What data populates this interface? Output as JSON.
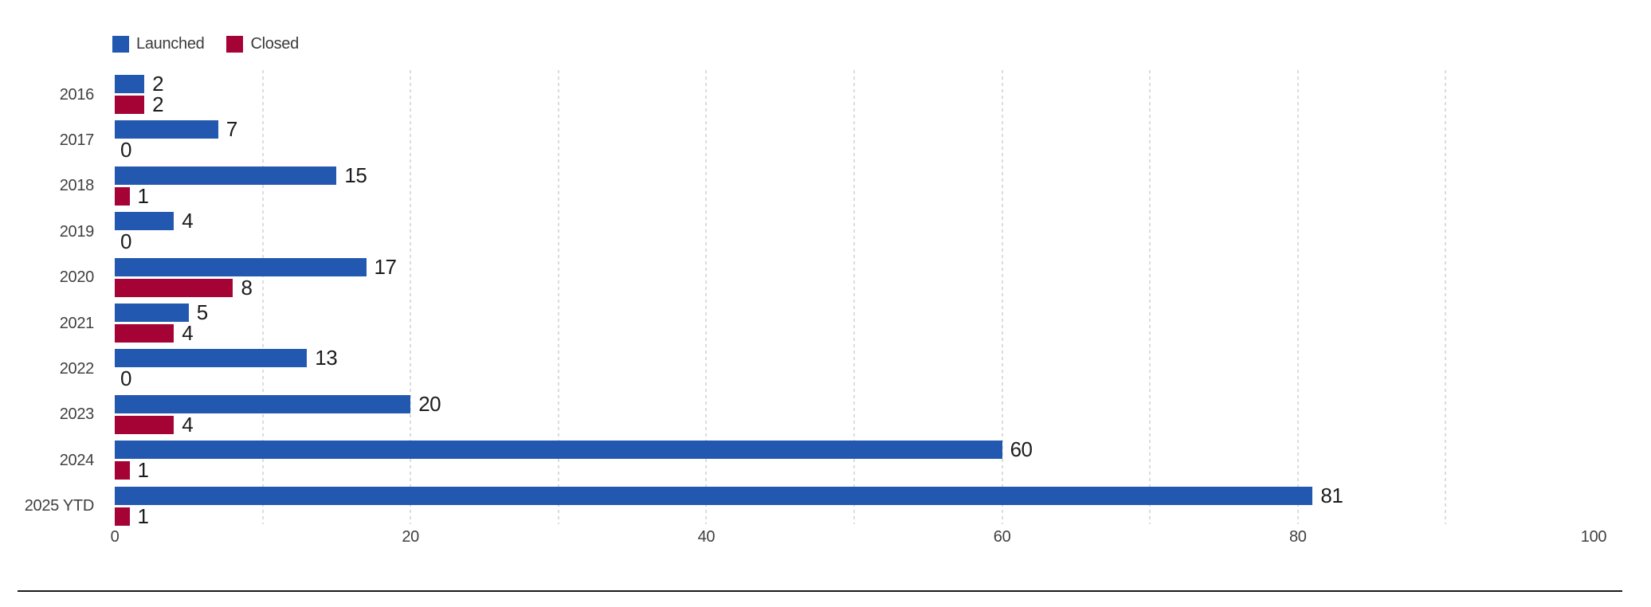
{
  "chart_data": {
    "type": "bar",
    "orientation": "horizontal",
    "categories": [
      "2016",
      "2017",
      "2018",
      "2019",
      "2020",
      "2021",
      "2022",
      "2023",
      "2024",
      "2025 YTD"
    ],
    "series": [
      {
        "name": "Launched",
        "color": "#2358b1",
        "values": [
          2,
          7,
          15,
          4,
          17,
          5,
          13,
          20,
          60,
          81
        ]
      },
      {
        "name": "Closed",
        "color": "#a50336",
        "values": [
          2,
          0,
          1,
          0,
          8,
          4,
          0,
          4,
          1,
          1
        ]
      }
    ],
    "xlim": [
      0,
      100
    ],
    "x_ticks": [
      0,
      20,
      40,
      60,
      80,
      100
    ],
    "minor_gridlines": [
      10,
      20,
      30,
      40,
      50,
      60,
      70,
      80,
      90
    ],
    "grid": "dashed-vertical",
    "legend_position": "top-left",
    "value_labels": "at-bar-end"
  },
  "colors": {
    "launched": "#2358b1",
    "closed": "#a50336",
    "gridline": "#dcdcdc",
    "axis_text": "#404040",
    "value_text": "#1c1c1c",
    "divider": "#1a1a1a",
    "background": "#ffffff"
  }
}
